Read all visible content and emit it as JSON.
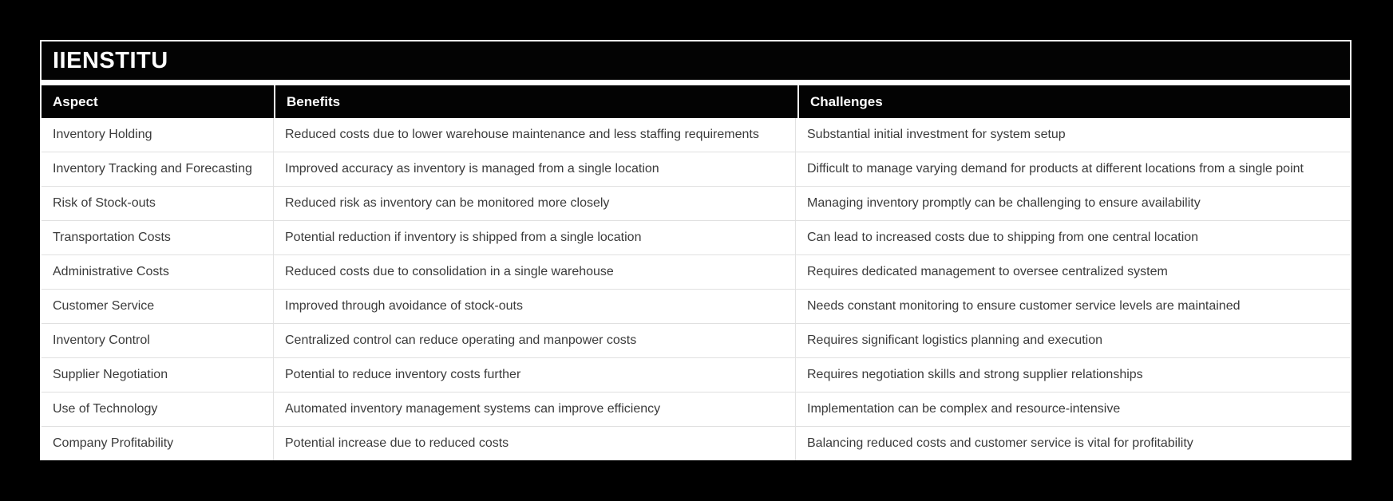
{
  "colors": {
    "page_bg": "#000000",
    "card_bg": "#ffffff",
    "bar_bg": "#030303",
    "header_text": "#ffffff",
    "body_text": "#3b3b3b",
    "divider": "#e0e0e0"
  },
  "brand": {
    "title": "IIENSTITU"
  },
  "table": {
    "headers": {
      "aspect": "Aspect",
      "benefits": "Benefits",
      "challenges": "Challenges"
    },
    "rows": [
      {
        "aspect": "Inventory Holding",
        "benefit": "Reduced costs due to lower warehouse maintenance and less staffing requirements",
        "challenge": "Substantial initial investment for system setup"
      },
      {
        "aspect": "Inventory Tracking and Forecasting",
        "benefit": "Improved accuracy as inventory is managed from a single location",
        "challenge": "Difficult to manage varying demand for products at different locations from a single point"
      },
      {
        "aspect": "Risk of Stock-outs",
        "benefit": "Reduced risk as inventory can be monitored more closely",
        "challenge": "Managing inventory promptly can be challenging to ensure availability"
      },
      {
        "aspect": "Transportation Costs",
        "benefit": "Potential reduction if inventory is shipped from a single location",
        "challenge": "Can lead to increased costs due to shipping from one central location"
      },
      {
        "aspect": "Administrative Costs",
        "benefit": "Reduced costs due to consolidation in a single warehouse",
        "challenge": "Requires dedicated management to oversee centralized system"
      },
      {
        "aspect": "Customer Service",
        "benefit": "Improved through avoidance of stock-outs",
        "challenge": "Needs constant monitoring to ensure customer service levels are maintained"
      },
      {
        "aspect": "Inventory Control",
        "benefit": "Centralized control can reduce operating and manpower costs",
        "challenge": "Requires significant logistics planning and execution"
      },
      {
        "aspect": "Supplier Negotiation",
        "benefit": "Potential to reduce inventory costs further",
        "challenge": "Requires negotiation skills and strong supplier relationships"
      },
      {
        "aspect": "Use of Technology",
        "benefit": "Automated inventory management systems can improve efficiency",
        "challenge": "Implementation can be complex and resource-intensive"
      },
      {
        "aspect": "Company Profitability",
        "benefit": "Potential increase due to reduced costs",
        "challenge": "Balancing reduced costs and customer service is vital for profitability"
      }
    ]
  },
  "chart_data": {
    "type": "table",
    "title": "IIENSTITU",
    "columns": [
      "Aspect",
      "Benefits",
      "Challenges"
    ],
    "rows": [
      [
        "Inventory Holding",
        "Reduced costs due to lower warehouse maintenance and less staffing requirements",
        "Substantial initial investment for system setup"
      ],
      [
        "Inventory Tracking and Forecasting",
        "Improved accuracy as inventory is managed from a single location",
        "Difficult to manage varying demand for products at different locations from a single point"
      ],
      [
        "Risk of Stock-outs",
        "Reduced risk as inventory can be monitored more closely",
        "Managing inventory promptly can be challenging to ensure availability"
      ],
      [
        "Transportation Costs",
        "Potential reduction if inventory is shipped from a single location",
        "Can lead to increased costs due to shipping from one central location"
      ],
      [
        "Administrative Costs",
        "Reduced costs due to consolidation in a single warehouse",
        "Requires dedicated management to oversee centralized system"
      ],
      [
        "Customer Service",
        "Improved through avoidance of stock-outs",
        "Needs constant monitoring to ensure customer service levels are maintained"
      ],
      [
        "Inventory Control",
        "Centralized control can reduce operating and manpower costs",
        "Requires significant logistics planning and execution"
      ],
      [
        "Supplier Negotiation",
        "Potential to reduce inventory costs further",
        "Requires negotiation skills and strong supplier relationships"
      ],
      [
        "Use of Technology",
        "Automated inventory management systems can improve efficiency",
        "Implementation can be complex and resource-intensive"
      ],
      [
        "Company Profitability",
        "Potential increase due to reduced costs",
        "Balancing reduced costs and customer service is vital for profitability"
      ]
    ],
    "layout": {
      "header_style": "black bar, white bold text",
      "body_style": "white rows, light gray dividers",
      "grid": "horizontal and vertical light dividers"
    }
  }
}
